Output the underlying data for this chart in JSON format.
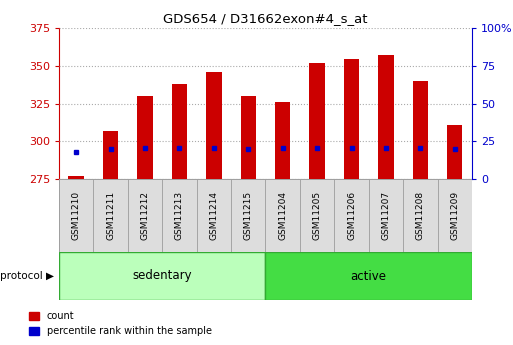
{
  "title": "GDS654 / D31662exon#4_s_at",
  "samples": [
    "GSM11210",
    "GSM11211",
    "GSM11212",
    "GSM11213",
    "GSM11214",
    "GSM11215",
    "GSM11204",
    "GSM11205",
    "GSM11206",
    "GSM11207",
    "GSM11208",
    "GSM11209"
  ],
  "groups": [
    "sedentary",
    "sedentary",
    "sedentary",
    "sedentary",
    "sedentary",
    "sedentary",
    "active",
    "active",
    "active",
    "active",
    "active",
    "active"
  ],
  "count_values": [
    277,
    307,
    330,
    338,
    346,
    330,
    326,
    352,
    354,
    357,
    340,
    311
  ],
  "percentile_values": [
    18,
    20,
    21,
    21,
    21,
    20,
    21,
    21,
    21,
    21,
    21,
    20
  ],
  "ylim_left": [
    275,
    375
  ],
  "ylim_right": [
    0,
    100
  ],
  "yticks_left": [
    275,
    300,
    325,
    350,
    375
  ],
  "yticks_right": [
    0,
    25,
    50,
    75,
    100
  ],
  "bar_color": "#cc0000",
  "dot_color": "#0000cc",
  "bar_width": 0.45,
  "background_color": "#ffffff",
  "plot_bg_color": "#ffffff",
  "grid_color": "#aaaaaa",
  "left_axis_color": "#cc0000",
  "right_axis_color": "#0000cc",
  "sedentary_color": "#bbffbb",
  "active_color": "#44dd44",
  "protocol_label": "protocol",
  "group_labels": [
    "sedentary",
    "active"
  ],
  "legend_count": "count",
  "legend_percentile": "percentile rank within the sample",
  "base_value": 275,
  "label_box_color": "#dddddd",
  "label_box_edge": "#999999"
}
